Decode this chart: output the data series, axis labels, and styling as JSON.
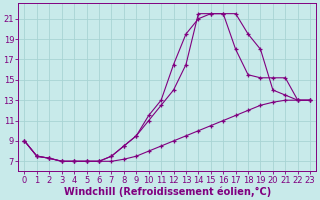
{
  "background_color": "#c8eaea",
  "grid_color": "#a8d4d4",
  "line_color": "#800080",
  "marker": "+",
  "xlabel": "Windchill (Refroidissement éolien,°C)",
  "xlabel_fontsize": 7,
  "xlim": [
    -0.5,
    23.5
  ],
  "ylim": [
    6.0,
    22.5
  ],
  "xticks": [
    0,
    1,
    2,
    3,
    4,
    5,
    6,
    7,
    8,
    9,
    10,
    11,
    12,
    13,
    14,
    15,
    16,
    17,
    18,
    19,
    20,
    21,
    22,
    23
  ],
  "yticks": [
    7,
    9,
    11,
    13,
    15,
    17,
    19,
    21
  ],
  "tick_fontsize": 6,
  "curve1_x": [
    0,
    1,
    2,
    3,
    4,
    5,
    6,
    7,
    8,
    9,
    10,
    11,
    12,
    13,
    14,
    15,
    16,
    17,
    18,
    19,
    20,
    21,
    22,
    23
  ],
  "curve1_y": [
    9.0,
    7.5,
    7.3,
    7.0,
    7.0,
    7.0,
    7.0,
    7.0,
    7.2,
    7.5,
    8.0,
    8.5,
    9.0,
    9.5,
    10.0,
    10.5,
    11.0,
    11.5,
    12.0,
    12.5,
    12.8,
    13.0,
    13.0,
    13.0
  ],
  "curve2_x": [
    0,
    1,
    2,
    3,
    4,
    5,
    6,
    7,
    8,
    9,
    10,
    11,
    12,
    13,
    14,
    15,
    16,
    17,
    18,
    19,
    20,
    21,
    22,
    23
  ],
  "curve2_y": [
    9.0,
    7.5,
    7.3,
    7.0,
    7.0,
    7.0,
    7.0,
    7.5,
    8.5,
    9.5,
    11.0,
    12.5,
    14.0,
    16.5,
    21.5,
    21.5,
    21.5,
    18.0,
    15.5,
    15.2,
    15.2,
    15.2,
    13.0,
    13.0
  ],
  "curve3_x": [
    0,
    1,
    2,
    3,
    4,
    5,
    6,
    7,
    8,
    9,
    10,
    11,
    12,
    13,
    14,
    15,
    16,
    17,
    18,
    19,
    20,
    21,
    22,
    23
  ],
  "curve3_y": [
    9.0,
    7.5,
    7.3,
    7.0,
    7.0,
    7.0,
    7.0,
    7.5,
    8.5,
    9.5,
    11.5,
    13.0,
    16.5,
    19.5,
    21.0,
    21.5,
    21.5,
    21.5,
    19.5,
    18.0,
    14.0,
    13.5,
    13.0,
    13.0
  ]
}
